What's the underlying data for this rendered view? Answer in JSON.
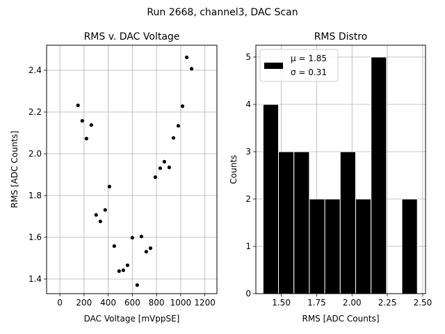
{
  "figure": {
    "suptitle": "Run 2668, channel3, DAC Scan"
  },
  "chart_data": [
    {
      "type": "scatter",
      "title": "RMS v. DAC Voltage",
      "xlabel": "DAC Voltage [mVppSE]",
      "ylabel": "RMS [ADC Counts]",
      "xlim": [
        -110,
        1300
      ],
      "ylim": [
        1.33,
        2.52
      ],
      "xticks": [
        0,
        200,
        400,
        600,
        800,
        1000,
        1200
      ],
      "xtick_labels": [
        "0",
        "200",
        "400",
        "600",
        "800",
        "1000",
        "1200"
      ],
      "yticks": [
        1.4,
        1.6,
        1.8,
        2.0,
        2.2,
        2.4
      ],
      "ytick_labels": [
        "1.4",
        "1.6",
        "1.8",
        "2.0",
        "2.2",
        "2.4"
      ],
      "grid": true,
      "marker_color": "#000000",
      "points": [
        {
          "x": 150,
          "y": 2.232
        },
        {
          "x": 185,
          "y": 2.158
        },
        {
          "x": 220,
          "y": 2.073
        },
        {
          "x": 260,
          "y": 2.138
        },
        {
          "x": 300,
          "y": 1.707
        },
        {
          "x": 335,
          "y": 1.676
        },
        {
          "x": 375,
          "y": 1.731
        },
        {
          "x": 410,
          "y": 1.843
        },
        {
          "x": 450,
          "y": 1.558
        },
        {
          "x": 490,
          "y": 1.438
        },
        {
          "x": 525,
          "y": 1.442
        },
        {
          "x": 560,
          "y": 1.466
        },
        {
          "x": 600,
          "y": 1.598
        },
        {
          "x": 640,
          "y": 1.371
        },
        {
          "x": 675,
          "y": 1.604
        },
        {
          "x": 715,
          "y": 1.531
        },
        {
          "x": 750,
          "y": 1.548
        },
        {
          "x": 790,
          "y": 1.888
        },
        {
          "x": 830,
          "y": 1.931
        },
        {
          "x": 865,
          "y": 1.962
        },
        {
          "x": 905,
          "y": 1.935
        },
        {
          "x": 940,
          "y": 2.076
        },
        {
          "x": 980,
          "y": 2.134
        },
        {
          "x": 1015,
          "y": 2.228
        },
        {
          "x": 1050,
          "y": 2.462
        },
        {
          "x": 1090,
          "y": 2.407
        }
      ]
    },
    {
      "type": "bar",
      "subtype": "histogram",
      "title": "RMS Distro",
      "xlabel": "RMS [ADC Counts]",
      "ylabel": "Counts",
      "xlim": [
        1.32,
        2.52
      ],
      "ylim": [
        0,
        5.25
      ],
      "xticks": [
        1.5,
        1.75,
        2.0,
        2.25,
        2.5
      ],
      "xtick_labels": [
        "1.50",
        "1.75",
        "2.00",
        "2.25",
        "2.50"
      ],
      "yticks": [
        0,
        1,
        2,
        3,
        4,
        5
      ],
      "ytick_labels": [
        "0",
        "1",
        "2",
        "3",
        "4",
        "5"
      ],
      "grid": true,
      "bar_color": "#000000",
      "bin_edges": [
        1.371,
        1.4801,
        1.5892,
        1.6983,
        1.8074,
        1.9165,
        2.0256,
        2.1347,
        2.2438,
        2.3529,
        2.462
      ],
      "counts": [
        4,
        3,
        3,
        2,
        2,
        3,
        2,
        5,
        0,
        2
      ],
      "legend": {
        "position": "upper-left",
        "mu_label": "μ = 1.85",
        "sigma_label": "σ = 0.31"
      }
    }
  ]
}
